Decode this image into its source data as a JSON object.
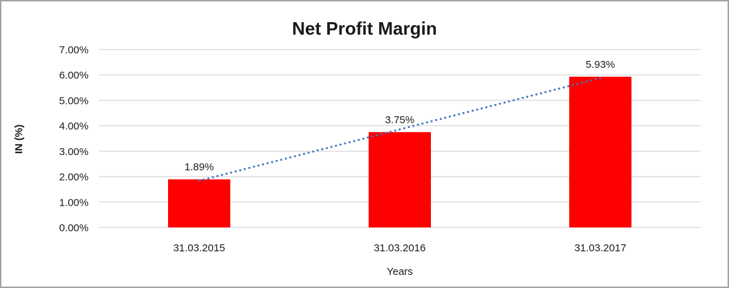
{
  "window": {
    "background": "#ffffff",
    "frame_border_color": "#a3a3a3"
  },
  "chart_data": {
    "type": "bar",
    "title": "Net Profit Margin",
    "categories": [
      "31.03.2015",
      "31.03.2016",
      "31.03.2017"
    ],
    "series": [
      {
        "name": "Net Profit Margin",
        "values": [
          1.89,
          3.75,
          5.93
        ]
      }
    ],
    "data_labels": [
      "1.89%",
      "3.75%",
      "5.93%"
    ],
    "xlabel": "Years",
    "ylabel": "IN (%)",
    "ylim": [
      0,
      7
    ],
    "ytick_step": 1,
    "ytick_labels": [
      "0.00%",
      "1.00%",
      "2.00%",
      "3.00%",
      "4.00%",
      "5.00%",
      "6.00%",
      "7.00%"
    ],
    "grid": true,
    "legend_position": "none",
    "bar_color": "#ff0000",
    "gridline_color": "#d9d9d9",
    "text_color": "#1a1a1a",
    "trendline": {
      "type": "linear",
      "style": "dotted",
      "color": "#4472c4"
    }
  }
}
